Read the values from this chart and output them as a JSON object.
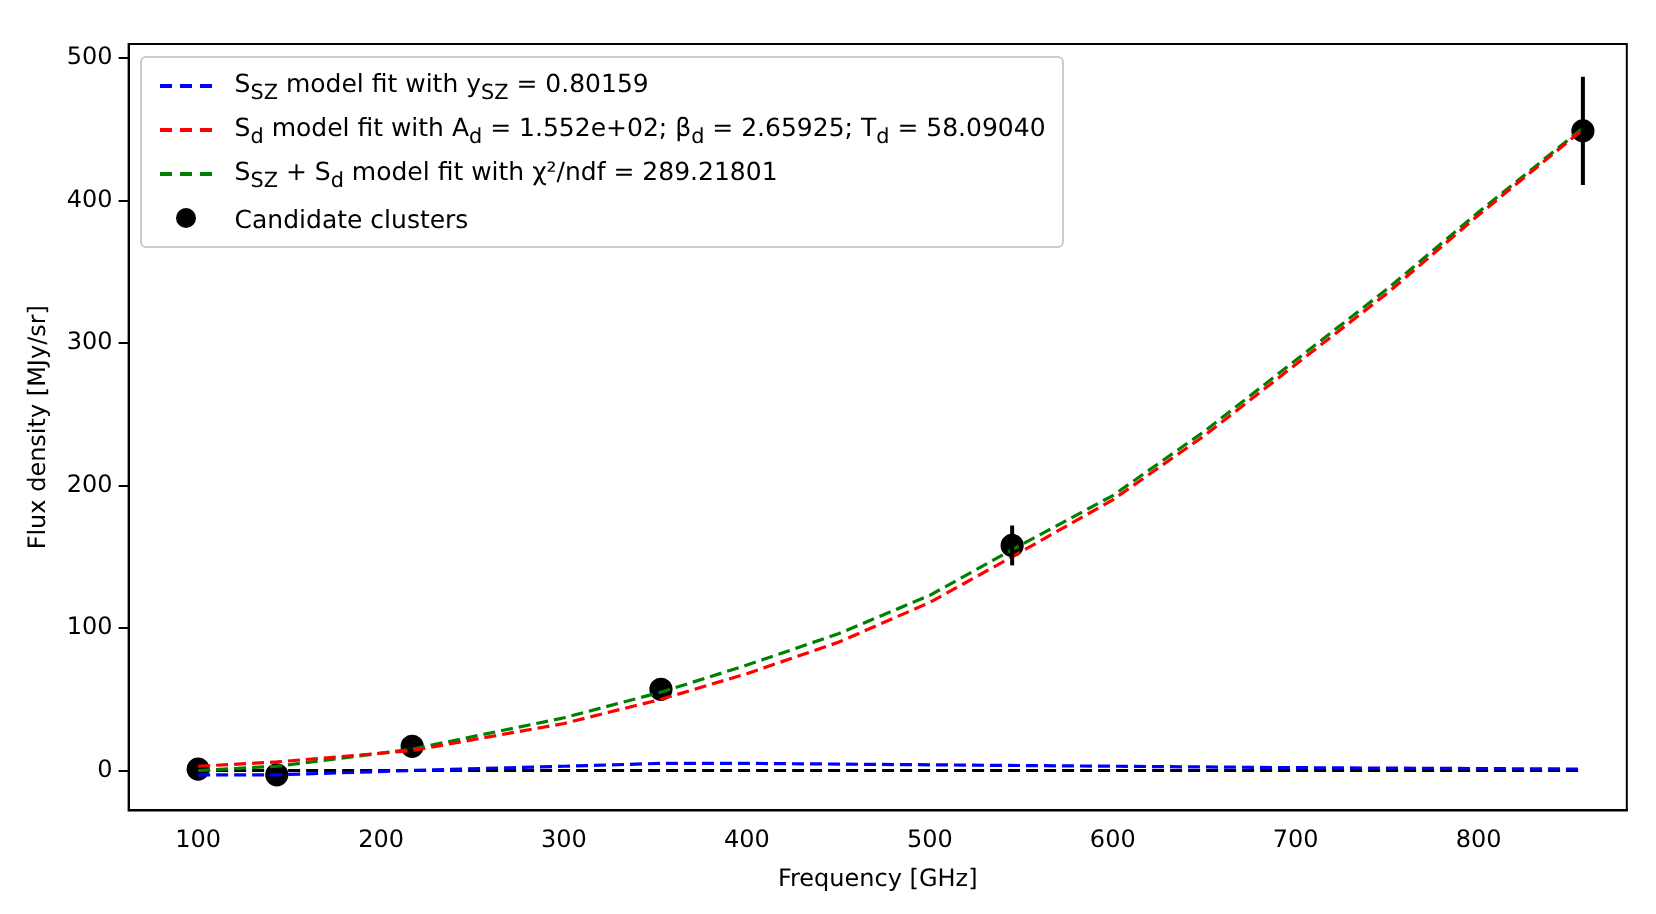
{
  "chart_data": {
    "type": "line",
    "xlabel": "Frequency [GHz]",
    "ylabel": "Flux density [MJy/sr]",
    "xlim": [
      62,
      881
    ],
    "xticks": [
      100,
      200,
      300,
      400,
      500,
      600,
      700,
      800
    ],
    "ylim": [
      -28,
      510
    ],
    "yticks": [
      0,
      100,
      200,
      300,
      400,
      500
    ],
    "grid": false,
    "legend": "top left",
    "series": [
      {
        "name": "S$_{SZ}$ model fit with y$_{SZ}$ = 0.80159",
        "color": "#0000ff",
        "line_style": "dashed",
        "marker": "none",
        "x": [
          100,
          143,
          217,
          300,
          353,
          400,
          500,
          600,
          700,
          857
        ],
        "values": [
          -3,
          -3,
          0,
          3,
          5,
          5,
          4,
          3,
          2,
          1
        ]
      },
      {
        "name": "S$_{d}$ model fit with A$_{d}$ = 1.552e+02; β$_{d}$ = 2.65925; T$_{d}$ = 58.09040",
        "color": "#ff0000",
        "line_style": "dashed",
        "marker": "none",
        "x": [
          100,
          143,
          217,
          300,
          353,
          400,
          450,
          500,
          545,
          600,
          650,
          700,
          750,
          800,
          857
        ],
        "values": [
          3,
          6,
          14,
          33,
          50,
          68,
          90,
          118,
          150,
          190,
          235,
          285,
          335,
          390,
          450
        ]
      },
      {
        "name": "S$_{SZ}$ + S$_{d}$ model fit with χ²/ndf = 289.21801",
        "color": "#008000",
        "line_style": "dashed",
        "marker": "none",
        "x": [
          100,
          143,
          217,
          300,
          353,
          400,
          450,
          500,
          545,
          600,
          650,
          700,
          750,
          800,
          857
        ],
        "values": [
          0,
          3,
          15,
          37,
          55,
          74,
          96,
          123,
          155,
          193,
          238,
          288,
          338,
          392,
          451
        ]
      },
      {
        "color": "#000000",
        "line_style": "dashed",
        "marker": "none",
        "x": [
          100,
          857
        ],
        "values": [
          0,
          0
        ]
      },
      {
        "name": "Candidate clusters",
        "type": "scatter",
        "color": "#000000",
        "marker": "circle",
        "x": [
          100,
          143,
          217,
          353,
          545,
          857
        ],
        "values": [
          1,
          -3,
          17,
          57,
          158,
          449
        ],
        "errors": [
          null,
          null,
          null,
          null,
          14,
          38
        ]
      }
    ]
  }
}
